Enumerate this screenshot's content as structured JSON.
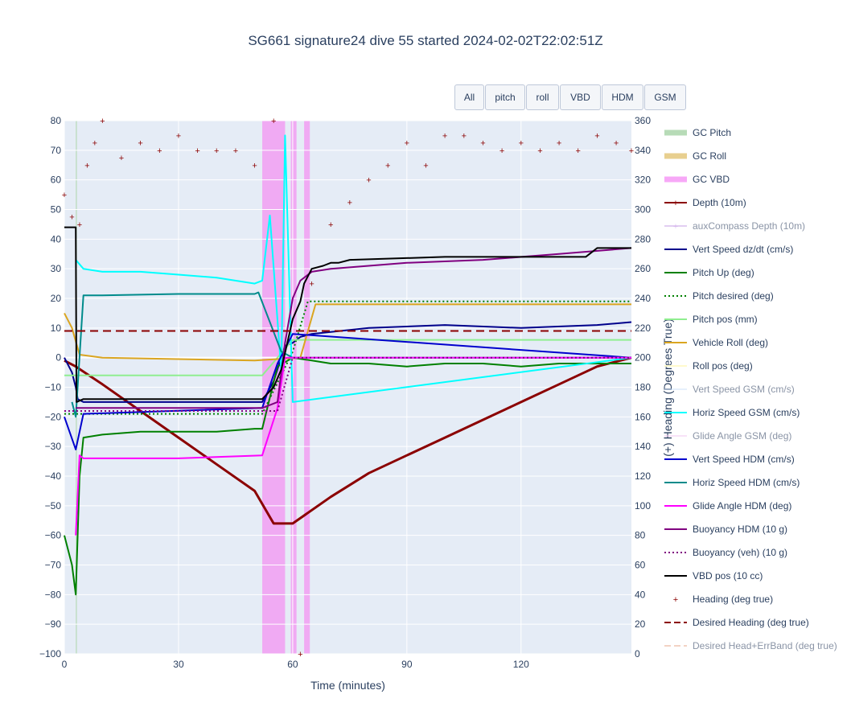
{
  "title": "SG661 signature24 dive 55 started 2024-02-02T22:02:51Z",
  "buttons": [
    "All",
    "pitch",
    "roll",
    "VBD",
    "HDM",
    "GSM"
  ],
  "colors": {
    "plot_bg": "#e5ecf6",
    "grid": "#ffffff",
    "text": "#2a3f5f"
  },
  "legend": [
    {
      "label": "GC Pitch",
      "color": "#b7dbb7",
      "style": "thick",
      "visible": true
    },
    {
      "label": "GC Roll",
      "color": "#e8cf8f",
      "style": "thick",
      "visible": true
    },
    {
      "label": "GC VBD",
      "color": "#f7a8f7",
      "style": "thick",
      "visible": true
    },
    {
      "label": "Depth (10m)",
      "color": "#8b0000",
      "style": "line-marker",
      "visible": true
    },
    {
      "label": "auxCompass Depth (10m)",
      "color": "#c79ee6",
      "style": "line-marker",
      "visible": false
    },
    {
      "label": "Vert Speed dz/dt (cm/s)",
      "color": "#00008b",
      "style": "line",
      "visible": true
    },
    {
      "label": "Pitch Up (deg)",
      "color": "#008000",
      "style": "line",
      "visible": true
    },
    {
      "label": "Pitch desired (deg)",
      "color": "#008000",
      "style": "dot",
      "visible": true
    },
    {
      "label": "Pitch pos (mm)",
      "color": "#90ee90",
      "style": "line",
      "visible": true
    },
    {
      "label": "Vehicle Roll (deg)",
      "color": "#daa520",
      "style": "line",
      "visible": true
    },
    {
      "label": "Roll pos (deg)",
      "color": "#fffacd",
      "style": "line",
      "visible": true
    },
    {
      "label": "Vert Speed GSM (cm/s)",
      "color": "#cfe3fb",
      "style": "line",
      "visible": false
    },
    {
      "label": "Horiz Speed GSM (cm/s)",
      "color": "#00ffff",
      "style": "line",
      "visible": true
    },
    {
      "label": "Glide Angle GSM (deg)",
      "color": "#f3c6f3",
      "style": "line",
      "visible": false
    },
    {
      "label": "Vert Speed HDM (cm/s)",
      "color": "#0000cd",
      "style": "line",
      "visible": true
    },
    {
      "label": "Horiz Speed HDM (cm/s)",
      "color": "#008b8b",
      "style": "line",
      "visible": true
    },
    {
      "label": "Glide Angle HDM (deg)",
      "color": "#ff00ff",
      "style": "line",
      "visible": true
    },
    {
      "label": "Buoyancy HDM (10 g)",
      "color": "#800080",
      "style": "line",
      "visible": true
    },
    {
      "label": "Buoyancy (veh) (10 g)",
      "color": "#800080",
      "style": "dot",
      "visible": true
    },
    {
      "label": "VBD pos (10 cc)",
      "color": "#000000",
      "style": "line",
      "visible": true
    },
    {
      "label": "Heading (deg true)",
      "color": "#8b0000",
      "style": "marker",
      "visible": true
    },
    {
      "label": "Desired Heading (deg true)",
      "color": "#8b0000",
      "style": "dash",
      "visible": true
    },
    {
      "label": "Desired Head+ErrBand (deg true)",
      "color": "#e9a98a",
      "style": "dash",
      "visible": false
    }
  ],
  "chart_data": {
    "type": "line",
    "title": "SG661 signature24 dive 55 started 2024-02-02T22:02:51Z",
    "xlabel": "Time (minutes)",
    "ylabel": "",
    "y2label": "(+) Heading (Degrees True)",
    "xlim": [
      0,
      149
    ],
    "ylim": [
      -100,
      80
    ],
    "y2lim": [
      0,
      360
    ],
    "x_ticks": [
      0,
      30,
      60,
      90,
      120
    ],
    "y_ticks": [
      -100,
      -90,
      -80,
      -70,
      -60,
      -50,
      -40,
      -30,
      -20,
      -10,
      0,
      10,
      20,
      30,
      40,
      50,
      60,
      70,
      80
    ],
    "y2_ticks": [
      0,
      20,
      40,
      60,
      80,
      100,
      120,
      140,
      160,
      180,
      200,
      220,
      240,
      260,
      280,
      300,
      320,
      340,
      360
    ],
    "grid": true,
    "legend_position": "right",
    "bands": [
      {
        "name": "GC VBD",
        "x": [
          [
            52,
            58
          ],
          [
            59.5,
            61
          ],
          [
            63,
            64.5
          ]
        ]
      },
      {
        "name": "GC Pitch",
        "x": [
          [
            3,
            3.3
          ]
        ]
      }
    ],
    "series": [
      {
        "name": "Depth (10m)",
        "axis": "y",
        "x": [
          0,
          3,
          10,
          20,
          30,
          40,
          50,
          55,
          60,
          70,
          80,
          90,
          100,
          110,
          120,
          130,
          140,
          149
        ],
        "y": [
          -1,
          -3,
          -9,
          -18,
          -27,
          -36,
          -45,
          -56,
          -56,
          -47,
          -39,
          -33,
          -27,
          -21,
          -15,
          -9,
          -3,
          0
        ]
      },
      {
        "name": "Vert Speed dz/dt (cm/s)",
        "axis": "y",
        "x": [
          0,
          2,
          3,
          3.5,
          5,
          15,
          25,
          35,
          45,
          52,
          55,
          58,
          60,
          62,
          65,
          80,
          100,
          120,
          140,
          149
        ],
        "y": [
          0,
          -5,
          -10,
          -14,
          -15,
          -15,
          -15,
          -15,
          -15,
          -15,
          -8,
          4,
          5,
          7,
          8,
          10,
          11,
          10,
          11,
          12
        ]
      },
      {
        "name": "Pitch Up (deg)",
        "axis": "y",
        "x": [
          0,
          2,
          3,
          4,
          5,
          10,
          20,
          30,
          40,
          50,
          52,
          56,
          60,
          65,
          70,
          80,
          90,
          100,
          110,
          120,
          130,
          140,
          149
        ],
        "y": [
          -60,
          -70,
          -80,
          -40,
          -27,
          -26,
          -25,
          -25,
          -25,
          -24,
          -24,
          -3,
          0,
          -1,
          -2,
          -2,
          -3,
          -2,
          -2,
          -3,
          -2,
          -2,
          -2
        ]
      },
      {
        "name": "Pitch desired (deg)",
        "axis": "y",
        "x": [
          0,
          52,
          60,
          64,
          149
        ],
        "y": [
          -19,
          -19,
          2,
          19,
          19
        ]
      },
      {
        "name": "Pitch pos (mm)",
        "axis": "y",
        "x": [
          0,
          5,
          52,
          60,
          149
        ],
        "y": [
          -6,
          -6,
          -6,
          6,
          6
        ]
      },
      {
        "name": "Vehicle Roll (deg)",
        "axis": "y",
        "x": [
          0,
          2,
          4,
          10,
          50,
          62,
          66,
          75,
          85,
          95,
          110,
          120,
          130,
          149
        ],
        "y": [
          15,
          10,
          1,
          0,
          -1,
          0,
          18,
          18,
          18,
          18,
          18,
          18,
          18,
          18
        ]
      },
      {
        "name": "Horiz Speed GSM (cm/s)",
        "axis": "y",
        "x": [
          3,
          5,
          10,
          20,
          30,
          40,
          50,
          52,
          54,
          57,
          58,
          60,
          149
        ],
        "y": [
          33,
          30,
          29,
          29,
          28,
          27,
          25,
          26,
          48,
          -5,
          75,
          -15,
          0
        ]
      },
      {
        "name": "Vert Speed HDM (cm/s)",
        "axis": "y",
        "x": [
          0,
          3,
          5,
          52,
          56,
          60,
          149
        ],
        "y": [
          -20,
          -31,
          -19,
          -17,
          -2,
          8,
          0
        ]
      },
      {
        "name": "Horiz Speed HDM (cm/s)",
        "axis": "y",
        "x": [
          2,
          3,
          5,
          10,
          30,
          50,
          51,
          57,
          60,
          149
        ],
        "y": [
          -15,
          -20,
          21,
          21,
          21.5,
          21.5,
          22,
          2,
          0,
          0
        ]
      },
      {
        "name": "Glide Angle HDM (deg)",
        "axis": "y",
        "x": [
          3,
          4,
          5,
          10,
          30,
          52,
          56,
          58,
          60,
          149
        ],
        "y": [
          -60,
          -33,
          -34,
          -34,
          -34,
          -33,
          -17,
          0,
          0,
          0
        ]
      },
      {
        "name": "Buoyancy HDM (10 g)",
        "axis": "y",
        "x": [
          3,
          5,
          52,
          56,
          58,
          60,
          62,
          65,
          70,
          90,
          110,
          130,
          149
        ],
        "y": [
          -17,
          -17,
          -17,
          -15,
          5,
          20,
          26,
          29,
          30,
          32,
          33,
          35,
          37
        ]
      },
      {
        "name": "Buoyancy (veh) (10 g)",
        "axis": "y",
        "x": [
          0,
          52,
          56,
          60,
          149
        ],
        "y": [
          -18,
          -18,
          -18,
          0,
          0
        ]
      },
      {
        "name": "VBD pos (10 cc)",
        "axis": "y",
        "x": [
          0,
          3,
          3.2,
          5,
          52,
          55,
          57,
          60,
          62,
          63,
          65,
          68,
          70,
          72,
          75,
          100,
          120,
          130,
          137,
          140,
          149
        ],
        "y": [
          44,
          44,
          -15,
          -14,
          -14,
          -10,
          -4,
          13,
          19,
          25,
          30,
          31,
          32,
          32,
          33,
          34,
          34,
          34,
          34,
          37,
          37
        ]
      },
      {
        "name": "Desired Heading (deg true)",
        "axis": "y2",
        "x": [
          0,
          149
        ],
        "y": [
          218,
          218
        ]
      },
      {
        "name": "Heading (deg true)",
        "axis": "y2",
        "x": [
          0,
          2,
          4,
          6,
          8,
          10,
          15,
          20,
          25,
          30,
          35,
          40,
          45,
          50,
          55,
          62,
          65,
          70,
          75,
          80,
          85,
          90,
          95,
          100,
          105,
          110,
          115,
          120,
          125,
          130,
          135,
          140,
          145,
          149
        ],
        "y": [
          310,
          295,
          290,
          330,
          345,
          360,
          335,
          345,
          340,
          350,
          340,
          340,
          340,
          330,
          360,
          0,
          250,
          290,
          305,
          320,
          330,
          345,
          330,
          350,
          350,
          345,
          340,
          345,
          340,
          345,
          340,
          350,
          345,
          340
        ]
      }
    ]
  }
}
